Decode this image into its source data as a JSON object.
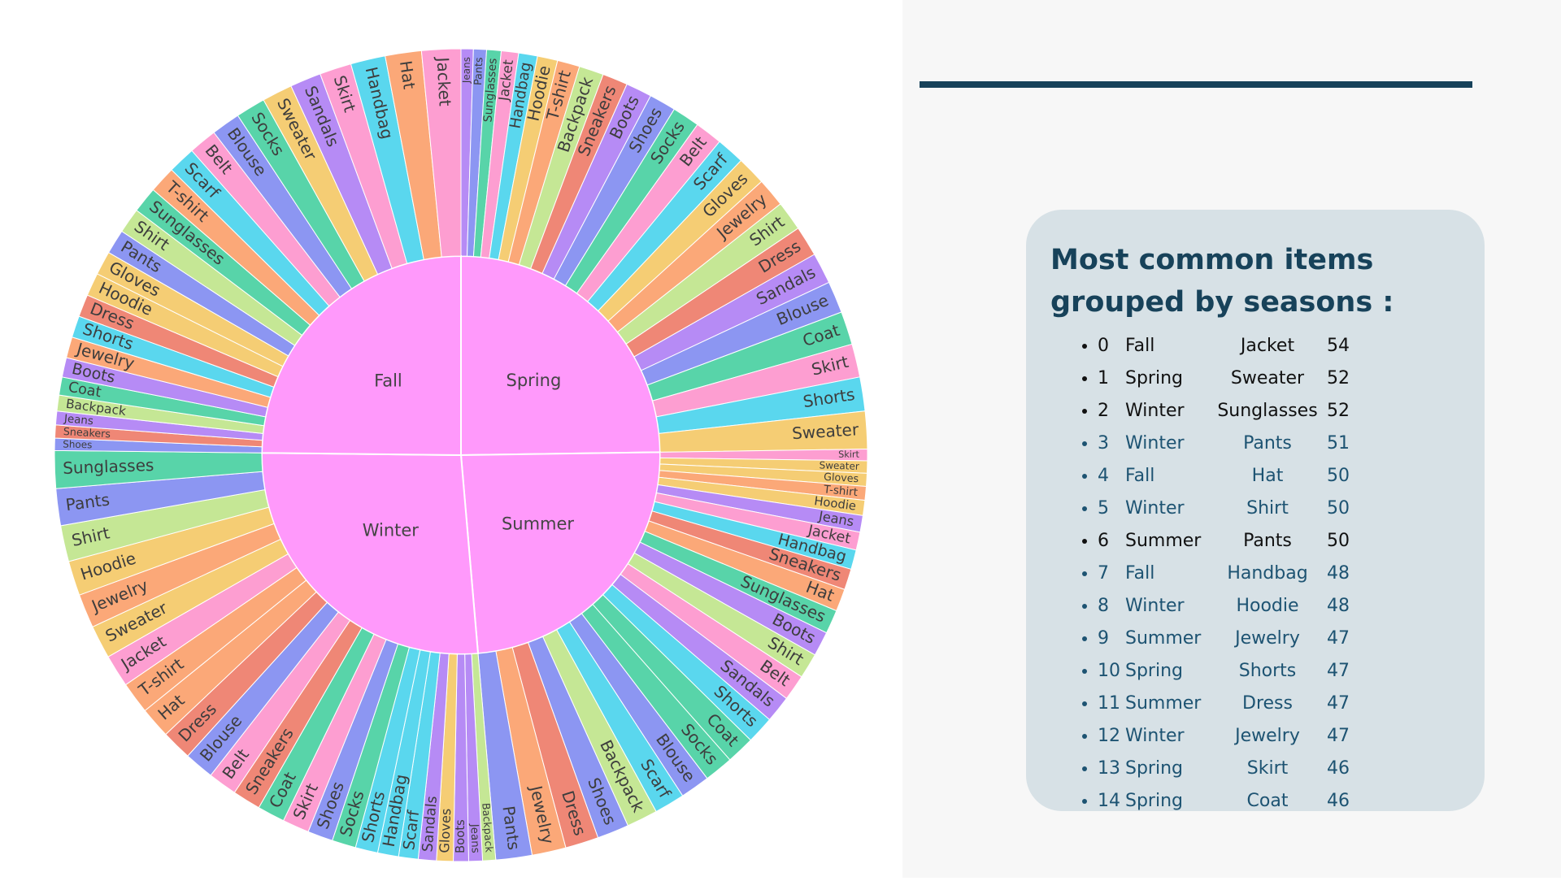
{
  "colors": {
    "inner": "#ff99fb",
    "rule": "#17425a",
    "card": "#d7e1e6",
    "palette": [
      "#b68bf5",
      "#8c96f2",
      "#58d4a9",
      "#fd9ed1",
      "#5ad7ee",
      "#f5cd74",
      "#fba878",
      "#c5e795",
      "#ef8776"
    ],
    "dark_text": "#17425a",
    "black_text": "#111111",
    "teal_text": "#1d5372"
  },
  "panel": {
    "title": "Most common items grouped by seasons :",
    "items": [
      {
        "idx": "0",
        "season": "Fall",
        "item": "Jacket",
        "count": "54",
        "tone": "black"
      },
      {
        "idx": "1",
        "season": "Spring",
        "item": "Sweater",
        "count": "52",
        "tone": "black"
      },
      {
        "idx": "2",
        "season": "Winter",
        "item": "Sunglasses",
        "count": "52",
        "tone": "black"
      },
      {
        "idx": "3",
        "season": "Winter",
        "item": "Pants",
        "count": "51",
        "tone": "teal"
      },
      {
        "idx": "4",
        "season": "Fall",
        "item": "Hat",
        "count": "50",
        "tone": "teal"
      },
      {
        "idx": "5",
        "season": "Winter",
        "item": "Shirt",
        "count": "50",
        "tone": "teal"
      },
      {
        "idx": "6",
        "season": "Summer",
        "item": "Pants",
        "count": "50",
        "tone": "black"
      },
      {
        "idx": "7",
        "season": "Fall",
        "item": "Handbag",
        "count": "48",
        "tone": "teal"
      },
      {
        "idx": "8",
        "season": "Winter",
        "item": "Hoodie",
        "count": "48",
        "tone": "teal"
      },
      {
        "idx": "9",
        "season": "Summer",
        "item": "Jewelry",
        "count": "47",
        "tone": "teal"
      },
      {
        "idx": "10",
        "season": "Spring",
        "item": "Shorts",
        "count": "47",
        "tone": "teal"
      },
      {
        "idx": "11",
        "season": "Summer",
        "item": "Dress",
        "count": "47",
        "tone": "teal"
      },
      {
        "idx": "12",
        "season": "Winter",
        "item": "Jewelry",
        "count": "47",
        "tone": "teal"
      },
      {
        "idx": "13",
        "season": "Spring",
        "item": "Skirt",
        "count": "46",
        "tone": "teal"
      },
      {
        "idx": "14",
        "season": "Spring",
        "item": "Coat",
        "count": "46",
        "tone": "teal"
      }
    ]
  },
  "chart_data": {
    "type": "sunburst",
    "title": "",
    "seasons": [
      {
        "name": "Spring",
        "items": [
          {
            "name": "Jeans",
            "value": 17
          },
          {
            "name": "Pants",
            "value": 18
          },
          {
            "name": "Sunglasses",
            "value": 20
          },
          {
            "name": "Jacket",
            "value": 24
          },
          {
            "name": "Handbag",
            "value": 26
          },
          {
            "name": "Hoodie",
            "value": 28
          },
          {
            "name": "T-shirt",
            "value": 31
          },
          {
            "name": "Backpack",
            "value": 34
          },
          {
            "name": "Sneakers",
            "value": 35
          },
          {
            "name": "Boots",
            "value": 36
          },
          {
            "name": "Shoes",
            "value": 37
          },
          {
            "name": "Socks",
            "value": 38
          },
          {
            "name": "Belt",
            "value": 38
          },
          {
            "name": "Scarf",
            "value": 39
          },
          {
            "name": "Gloves",
            "value": 40
          },
          {
            "name": "Jewelry",
            "value": 40
          },
          {
            "name": "Shirt",
            "value": 41
          },
          {
            "name": "Dress",
            "value": 42
          },
          {
            "name": "Sandals",
            "value": 43
          },
          {
            "name": "Blouse",
            "value": 44
          },
          {
            "name": "Coat",
            "value": 46
          },
          {
            "name": "Skirt",
            "value": 46
          },
          {
            "name": "Shorts",
            "value": 47
          },
          {
            "name": "Sweater",
            "value": 52
          }
        ]
      },
      {
        "name": "Summer",
        "items": [
          {
            "name": "Skirt",
            "value": 16
          },
          {
            "name": "Sweater",
            "value": 17
          },
          {
            "name": "Gloves",
            "value": 18
          },
          {
            "name": "T-shirt",
            "value": 19
          },
          {
            "name": "Hoodie",
            "value": 21
          },
          {
            "name": "Jeans",
            "value": 23
          },
          {
            "name": "Jacket",
            "value": 25
          },
          {
            "name": "Handbag",
            "value": 27
          },
          {
            "name": "Sneakers",
            "value": 29
          },
          {
            "name": "Hat",
            "value": 31
          },
          {
            "name": "Sunglasses",
            "value": 33
          },
          {
            "name": "Boots",
            "value": 34
          },
          {
            "name": "Shirt",
            "value": 35
          },
          {
            "name": "Belt",
            "value": 36
          },
          {
            "name": "Sandals",
            "value": 37
          },
          {
            "name": "Shorts",
            "value": 38
          },
          {
            "name": "Coat",
            "value": 39
          },
          {
            "name": "Socks",
            "value": 40
          },
          {
            "name": "Blouse",
            "value": 41
          },
          {
            "name": "Scarf",
            "value": 42
          },
          {
            "name": "Backpack",
            "value": 43
          },
          {
            "name": "Shoes",
            "value": 44
          },
          {
            "name": "Dress",
            "value": 46
          },
          {
            "name": "Jewelry",
            "value": 47
          },
          {
            "name": "Pants",
            "value": 50
          }
        ]
      },
      {
        "name": "Winter",
        "items": [
          {
            "name": "Backpack",
            "value": 18
          },
          {
            "name": "Jeans",
            "value": 19
          },
          {
            "name": "Boots",
            "value": 21
          },
          {
            "name": "Gloves",
            "value": 23
          },
          {
            "name": "Sandals",
            "value": 25
          },
          {
            "name": "Scarf",
            "value": 27
          },
          {
            "name": "Handbag",
            "value": 29
          },
          {
            "name": "Shorts",
            "value": 31
          },
          {
            "name": "Socks",
            "value": 33
          },
          {
            "name": "Shoes",
            "value": 35
          },
          {
            "name": "Skirt",
            "value": 37
          },
          {
            "name": "Coat",
            "value": 38
          },
          {
            "name": "Sneakers",
            "value": 39
          },
          {
            "name": "Belt",
            "value": 40
          },
          {
            "name": "Blouse",
            "value": 41
          },
          {
            "name": "Dress",
            "value": 42
          },
          {
            "name": "Hat",
            "value": 43
          },
          {
            "name": "T-shirt",
            "value": 44
          },
          {
            "name": "Jacket",
            "value": 45
          },
          {
            "name": "Sweater",
            "value": 46
          },
          {
            "name": "Jewelry",
            "value": 47
          },
          {
            "name": "Hoodie",
            "value": 48
          },
          {
            "name": "Shirt",
            "value": 50
          },
          {
            "name": "Pants",
            "value": 51
          },
          {
            "name": "Sunglasses",
            "value": 52
          }
        ]
      },
      {
        "name": "Fall",
        "items": [
          {
            "name": "Shoes",
            "value": 17
          },
          {
            "name": "Sneakers",
            "value": 18
          },
          {
            "name": "Jeans",
            "value": 19
          },
          {
            "name": "Backpack",
            "value": 22
          },
          {
            "name": "Coat",
            "value": 25
          },
          {
            "name": "Boots",
            "value": 27
          },
          {
            "name": "Jewelry",
            "value": 29
          },
          {
            "name": "Shorts",
            "value": 30
          },
          {
            "name": "Dress",
            "value": 31
          },
          {
            "name": "Hoodie",
            "value": 32
          },
          {
            "name": "Gloves",
            "value": 33
          },
          {
            "name": "Pants",
            "value": 34
          },
          {
            "name": "Shirt",
            "value": 35
          },
          {
            "name": "Sunglasses",
            "value": 36
          },
          {
            "name": "T-shirt",
            "value": 37
          },
          {
            "name": "Scarf",
            "value": 38
          },
          {
            "name": "Belt",
            "value": 39
          },
          {
            "name": "Blouse",
            "value": 40
          },
          {
            "name": "Socks",
            "value": 41
          },
          {
            "name": "Sweater",
            "value": 42
          },
          {
            "name": "Sandals",
            "value": 43
          },
          {
            "name": "Skirt",
            "value": 44
          },
          {
            "name": "Handbag",
            "value": 48
          },
          {
            "name": "Hat",
            "value": 50
          },
          {
            "name": "Jacket",
            "value": 54
          }
        ]
      }
    ]
  }
}
